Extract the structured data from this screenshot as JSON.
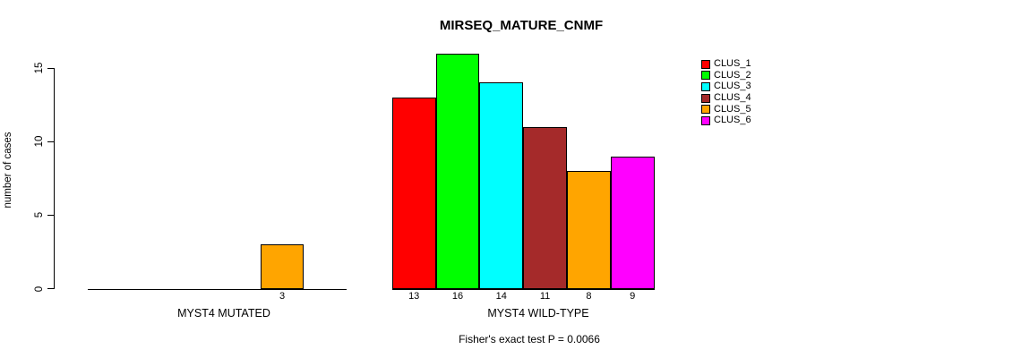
{
  "chart_data": {
    "type": "bar",
    "title": "MIRSEQ_MATURE_CNMF",
    "ylabel": "number of cases",
    "xlabel": "",
    "ylim": [
      0,
      15
    ],
    "yticks": [
      0,
      5,
      10,
      15
    ],
    "grid": false,
    "legend_position": "right",
    "clusters": [
      {
        "name": "CLUS_1",
        "color": "#FF0000"
      },
      {
        "name": "CLUS_2",
        "color": "#00FF00"
      },
      {
        "name": "CLUS_3",
        "color": "#00FFFF"
      },
      {
        "name": "CLUS_4",
        "color": "#A52A2A"
      },
      {
        "name": "CLUS_5",
        "color": "#FFA500"
      },
      {
        "name": "CLUS_6",
        "color": "#FF00FF"
      }
    ],
    "groups": [
      {
        "label": "MYST4 MUTATED",
        "values": [
          0,
          0,
          0,
          0,
          3,
          0
        ]
      },
      {
        "label": "MYST4 WILD-TYPE",
        "values": [
          13,
          16,
          14,
          11,
          8,
          9
        ]
      }
    ],
    "annotation": "Fisher's exact test P = 0.0066"
  }
}
